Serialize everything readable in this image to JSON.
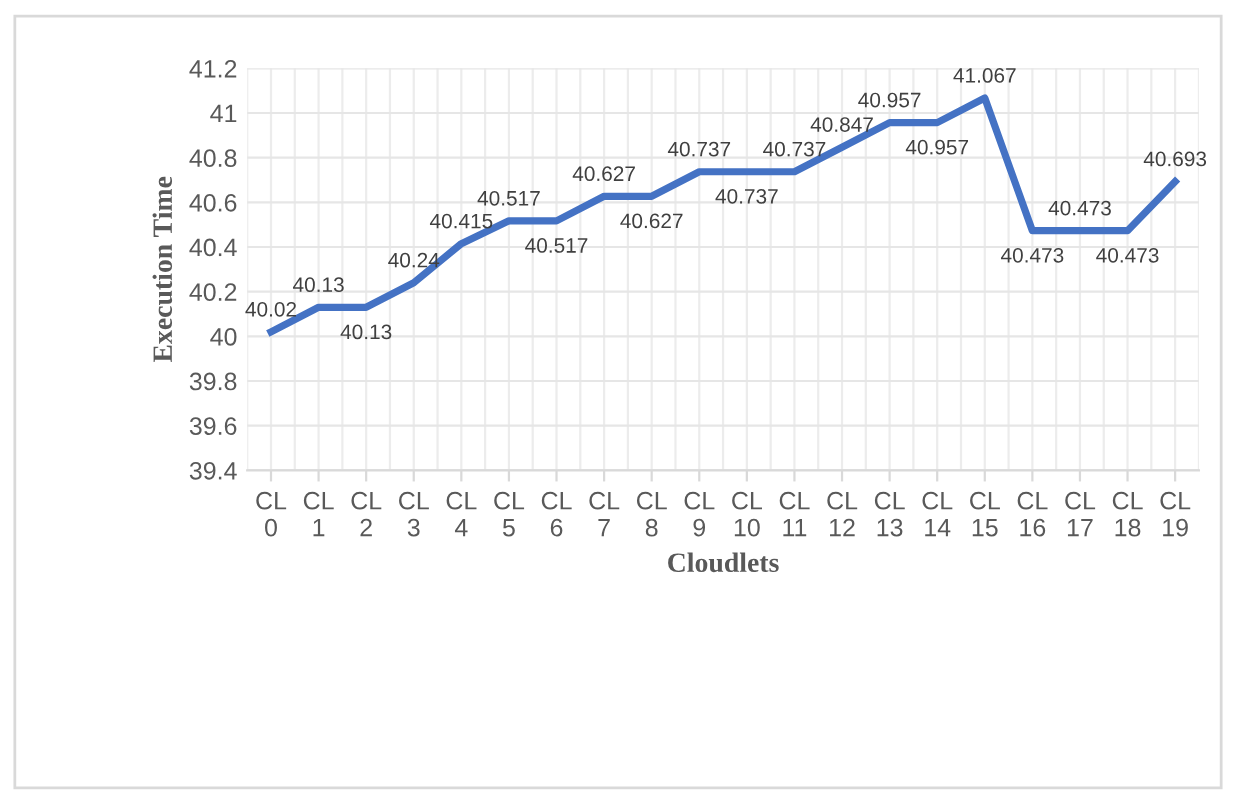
{
  "chart_data": {
    "type": "line",
    "xlabel": "Cloudlets",
    "ylabel": "Execution Time",
    "categories": [
      "CL 0",
      "CL 1",
      "CL 2",
      "CL 3",
      "CL 4",
      "CL 5",
      "CL 6",
      "CL 7",
      "CL 8",
      "CL 9",
      "CL 10",
      "CL 11",
      "CL 12",
      "CL 13",
      "CL 14",
      "CL 15",
      "CL 16",
      "CL 17",
      "CL 18",
      "CL 19"
    ],
    "series": [
      {
        "color": "#4472c4",
        "values": [
          40.02,
          40.13,
          40.13,
          40.24,
          40.415,
          40.517,
          40.517,
          40.627,
          40.627,
          40.737,
          40.737,
          40.737,
          40.847,
          40.957,
          40.957,
          41.067,
          40.473,
          40.473,
          40.473,
          40.693
        ]
      }
    ],
    "ylim": [
      39.4,
      41.2
    ],
    "yticks": [
      {
        "value": 39.4,
        "label": "39.4"
      },
      {
        "value": 39.6,
        "label": "39.6"
      },
      {
        "value": 39.8,
        "label": "39.8"
      },
      {
        "value": 40,
        "label": "40"
      },
      {
        "value": 40.2,
        "label": "40.2"
      },
      {
        "value": 40.4,
        "label": "40.4"
      },
      {
        "value": 40.6,
        "label": "40.6"
      },
      {
        "value": 40.8,
        "label": "40.8"
      },
      {
        "value": 41,
        "label": "41"
      },
      {
        "value": 41.2,
        "label": "41.2"
      }
    ],
    "grid": true,
    "data_labels": true,
    "marker": "none",
    "line_style": "solid"
  }
}
